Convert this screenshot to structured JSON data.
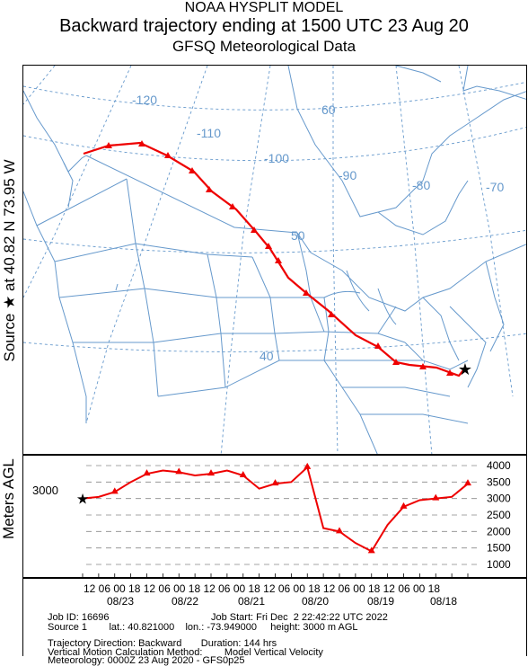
{
  "header": {
    "line1": "NOAA HYSPLIT MODEL",
    "line2": "Backward trajectory ending at 1500 UTC 23 Aug 20",
    "line3": "GFSQ Meteorological Data"
  },
  "side_labels": {
    "map": "Source ★ at   40.82 N   73.95 W",
    "profile": "Meters AGL"
  },
  "map": {
    "longitude_labels": [
      "-120",
      "-110",
      "-100",
      "-90",
      "-80",
      "-70"
    ],
    "latitude_labels": [
      "60",
      "50",
      "40"
    ],
    "line_color": "#6699cc",
    "trajectory_color": "#ee0000"
  },
  "profile": {
    "start_value": "3000",
    "y_ticks": [
      "4000",
      "3500",
      "3000",
      "2500",
      "2000",
      "1500",
      "1000"
    ],
    "hours_labels": "12 06 00 18 12 06 00 18 12 06 00 18 12 06 00 18 12 06 00 18 12 06 00 18",
    "dates": [
      "08/23",
      "08/22",
      "08/21",
      "08/20",
      "08/19",
      "08/18"
    ]
  },
  "info": {
    "job_id": "Job ID: 16696",
    "job_start": "Job Start: Fri Dec  2 22:42:22 UTC 2022",
    "source": "Source 1        lat.: 40.821000    lon.: -73.949000     height: 3000 m AGL",
    "direction": "Trajectory Direction: Backward       Duration: 144 hrs",
    "vertical": "Vertical Motion Calculation Method:        Model Vertical Velocity",
    "meteorology": "Meteorology: 0000Z 23 Aug 2020 - GFS0p25"
  },
  "chart_data": {
    "type": "line",
    "title": "Backward trajectory ending at 1500 UTC 23 Aug 20",
    "ylabel": "Meters AGL",
    "ylim": [
      1000,
      4000
    ],
    "source": {
      "lat": 40.82,
      "lon": -73.95,
      "height_m": 3000
    },
    "duration_hours": 144,
    "series": [
      {
        "x_hours_before_end": [
          0,
          6,
          12,
          18,
          24,
          30,
          36,
          42,
          48,
          54,
          60,
          66,
          72,
          78,
          84,
          90,
          96,
          102,
          108,
          114,
          120,
          126,
          132,
          138,
          144
        ],
        "height_m": [
          3000,
          3050,
          3200,
          3500,
          3750,
          3850,
          3800,
          3700,
          3750,
          3850,
          3700,
          3300,
          3450,
          3500,
          3950,
          2100,
          2000,
          1650,
          1400,
          2200,
          2750,
          2950,
          3000,
          3050,
          3450
        ]
      }
    ]
  }
}
